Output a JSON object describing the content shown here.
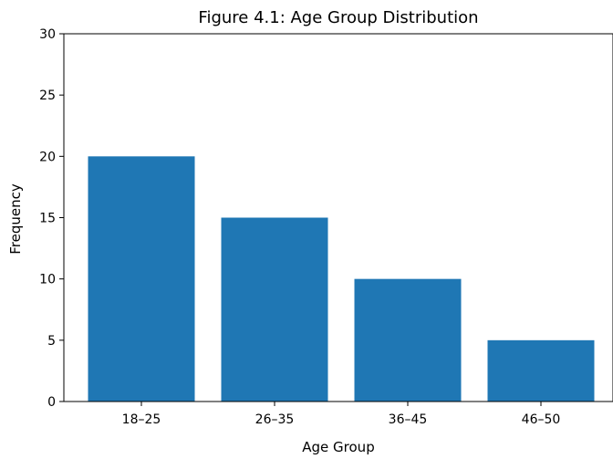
{
  "chart_data": {
    "type": "bar",
    "title": "Figure 4.1: Age Group Distribution",
    "xlabel": "Age Group",
    "ylabel": "Frequency",
    "categories": [
      "18–25",
      "26–35",
      "36–45",
      "46–50"
    ],
    "values": [
      20,
      15,
      10,
      5
    ],
    "ylim": [
      0,
      30
    ],
    "yticks": [
      0,
      5,
      10,
      15,
      20,
      25,
      30
    ],
    "bar_color": "#1f77b4",
    "grid": false,
    "legend": "none"
  }
}
